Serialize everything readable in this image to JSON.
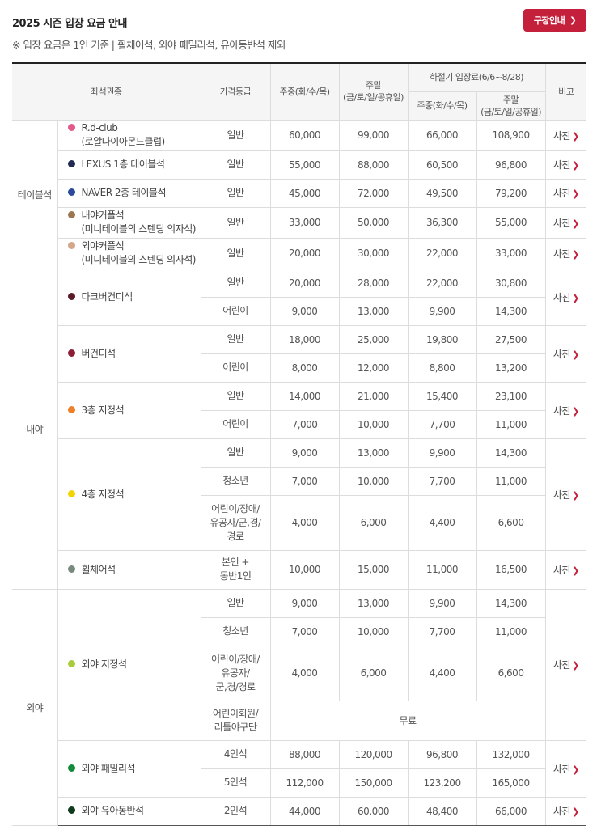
{
  "header": {
    "title": "2025 시즌 입장 요금 안내",
    "note": "※ 입장 요금은 1인 기준 | 휠체어석, 외야 패밀리석, 유아동반석 제외",
    "guide_button": "구장안내"
  },
  "table": {
    "headers": {
      "seat_type": "좌석권종",
      "grade": "가격등급",
      "weekday": "주중(화/수/목)",
      "weekend_1": "주말",
      "weekend_2": "(금/토/일/공휴일)",
      "summer": "하절기 입장료(6/6~8/28)",
      "summer_weekday": "주중(화/수/목)",
      "summer_weekend_1": "주말",
      "summer_weekend_2": "(금/토/일/공휴일)",
      "remarks": "비고"
    },
    "photo_label": "사진",
    "categories": {
      "table": "테이블석",
      "infield": "내야",
      "outfield": "외야"
    },
    "seats": {
      "rdclub": {
        "line1": "R.d-club",
        "line2": "(로얄다이아몬드클럽)",
        "color": "#e4598b"
      },
      "lexus": {
        "line1": "LEXUS 1층 테이블석",
        "color": "#1f2a55"
      },
      "naver": {
        "line1": "NAVER 2층 테이블석",
        "color": "#2c4a9c"
      },
      "infield_couple": {
        "line1": "내야커플석",
        "line2": "(미니테이블의 스텐딩 의자석)",
        "color": "#9b7650"
      },
      "outfield_couple": {
        "line1": "외야커플석",
        "line2": "(미니테이블의 스텐딩 의자석)",
        "color": "#d6a68a"
      },
      "dark_burgundy": {
        "line1": "다크버건디석",
        "color": "#5a1a26"
      },
      "burgundy": {
        "line1": "버건디석",
        "color": "#8b1e35"
      },
      "floor3": {
        "line1": "3층 지정석",
        "color": "#ef7f28"
      },
      "floor4": {
        "line1": "4층 지정석",
        "color": "#f3d400"
      },
      "wheelchair": {
        "line1": "휠체어석",
        "color": "#778a7d"
      },
      "outfield_reserved": {
        "line1": "외야 지정석",
        "color": "#a8cc3a"
      },
      "outfield_family": {
        "line1": "외야 패밀리석",
        "color": "#138a3c"
      },
      "outfield_infant": {
        "line1": "외야 유아동반석",
        "color": "#0e3b1c"
      }
    },
    "grades": {
      "general": "일반",
      "child": "어린이",
      "youth": "청소년",
      "discount_4": {
        "l1": "어린이/장애/",
        "l2": "유공자/군,경/",
        "l3": "경로"
      },
      "discount_of": {
        "l1": "어린이/장애/",
        "l2": "유공자/",
        "l3": "군,경/경로"
      },
      "companion": {
        "l1": "본인 +",
        "l2": "동반1인"
      },
      "kids_member": {
        "l1": "어린이회원/",
        "l2": "리틀야구단"
      },
      "four": "4인석",
      "five": "5인석",
      "two": "2인석"
    },
    "free_label": "무료",
    "prices": {
      "rdclub": [
        "60,000",
        "99,000",
        "66,000",
        "108,900"
      ],
      "lexus": [
        "55,000",
        "88,000",
        "60,500",
        "96,800"
      ],
      "naver": [
        "45,000",
        "72,000",
        "49,500",
        "79,200"
      ],
      "infield_couple": [
        "33,000",
        "50,000",
        "36,300",
        "55,000"
      ],
      "outfield_couple": [
        "20,000",
        "30,000",
        "22,000",
        "33,000"
      ],
      "dark_general": [
        "20,000",
        "28,000",
        "22,000",
        "30,800"
      ],
      "dark_child": [
        "9,000",
        "13,000",
        "9,900",
        "14,300"
      ],
      "burg_general": [
        "18,000",
        "25,000",
        "19,800",
        "27,500"
      ],
      "burg_child": [
        "8,000",
        "12,000",
        "8,800",
        "13,200"
      ],
      "f3_general": [
        "14,000",
        "21,000",
        "15,400",
        "23,100"
      ],
      "f3_child": [
        "7,000",
        "10,000",
        "7,700",
        "11,000"
      ],
      "f4_general": [
        "9,000",
        "13,000",
        "9,900",
        "14,300"
      ],
      "f4_youth": [
        "7,000",
        "10,000",
        "7,700",
        "11,000"
      ],
      "f4_discount": [
        "4,000",
        "6,000",
        "4,400",
        "6,600"
      ],
      "wheelchair": [
        "10,000",
        "15,000",
        "11,000",
        "16,500"
      ],
      "of_general": [
        "9,000",
        "13,000",
        "9,900",
        "14,300"
      ],
      "of_youth": [
        "7,000",
        "10,000",
        "7,700",
        "11,000"
      ],
      "of_discount": [
        "4,000",
        "6,000",
        "4,400",
        "6,600"
      ],
      "family_4": [
        "88,000",
        "120,000",
        "96,800",
        "132,000"
      ],
      "family_5": [
        "112,000",
        "150,000",
        "123,200",
        "165,000"
      ],
      "infant_2": [
        "44,000",
        "60,000",
        "48,400",
        "66,000"
      ]
    },
    "accent_color": "#c41f3b"
  }
}
